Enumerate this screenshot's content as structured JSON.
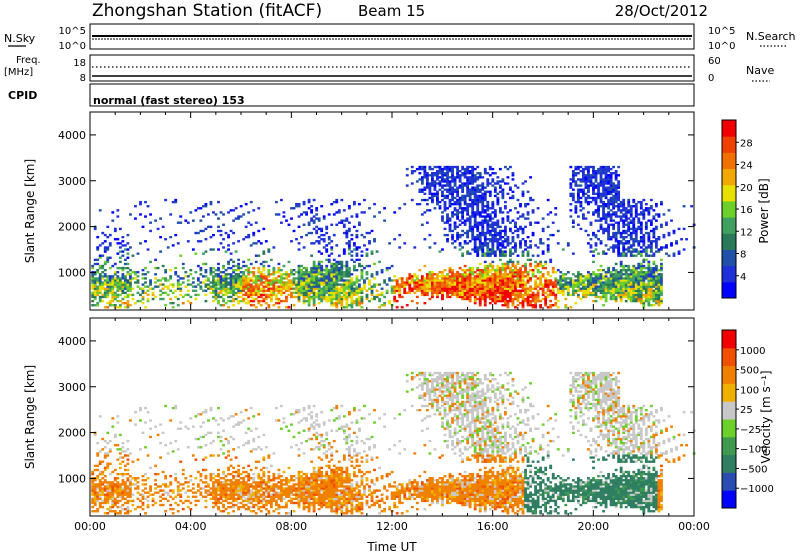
{
  "header": {
    "station": "Zhongshan Station (fitACF)",
    "beam": "Beam 15",
    "date": "28/Oct/2012"
  },
  "strip_labels": {
    "nsky": "N.Sky",
    "nsearch": "N.Search",
    "freq_line1": "Freq.",
    "freq_line2": "[MHz]",
    "nave": "Nave",
    "cpid": "CPID",
    "cpid_text": "normal (fast stereo) 153"
  },
  "strip_ticks": {
    "noise_left": [
      "10^5",
      "10^0"
    ],
    "noise_right": [
      "10^5",
      "10^0"
    ],
    "freq_left": [
      "18",
      "8"
    ],
    "nave_right": [
      "60",
      "0"
    ]
  },
  "chart_data": [
    {
      "type": "heatmap",
      "name": "power",
      "ylabel": "Slant Range [km]",
      "xlabel": "",
      "xlim": [
        0,
        24
      ],
      "ylim": [
        180,
        4500
      ],
      "yticks": [
        1000,
        2000,
        3000,
        4000
      ],
      "colorbar": {
        "label": "Power [dB]",
        "ticks": [
          "28",
          "24",
          "20",
          "16",
          "12",
          "8",
          "4"
        ],
        "colors": [
          "#0000ff",
          "#2030d8",
          "#2050a8",
          "#2a7a5a",
          "#3fa060",
          "#6ccf2a",
          "#e8e000",
          "#f0a800",
          "#f07000",
          "#f04000",
          "#f00000"
        ]
      }
    },
    {
      "type": "heatmap",
      "name": "velocity",
      "ylabel": "Slant Range [km]",
      "xlabel": "Time UT",
      "xlim": [
        0,
        24
      ],
      "ylim": [
        180,
        4500
      ],
      "yticks": [
        1000,
        2000,
        3000,
        4000
      ],
      "xtick_labels": [
        "00:00",
        "04:00",
        "08:00",
        "12:00",
        "16:00",
        "20:00",
        "00:00"
      ],
      "colorbar": {
        "label": "Velocity [m s⁻¹]",
        "ticks": [
          "1000",
          "500",
          "100",
          "25",
          "−25",
          "−100",
          "−500",
          "−1000"
        ],
        "colors": [
          "#0000ff",
          "#2a4cb0",
          "#2f7e62",
          "#3f9a50",
          "#6ccf2a",
          "#c8c8c8",
          "#f0b000",
          "#f08000",
          "#f05000",
          "#f00000"
        ]
      }
    }
  ]
}
